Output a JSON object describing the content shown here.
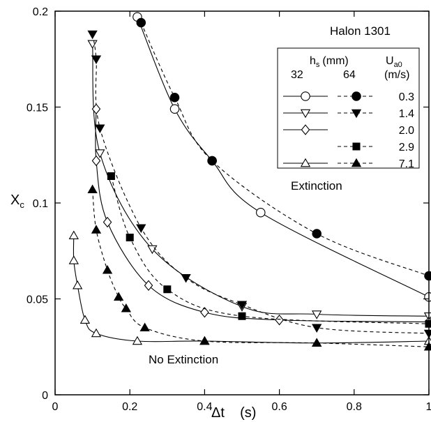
{
  "chart_data": {
    "type": "scatter",
    "title": "",
    "xlabel": "Δt    (s)",
    "ylabel": "X_c",
    "xlim": [
      0,
      1
    ],
    "ylim": [
      0,
      0.2
    ],
    "xticks": [
      0,
      0.2,
      0.4,
      0.6,
      0.8,
      1
    ],
    "xtick_labels": [
      "0",
      "0.2",
      "0.4",
      "0.6",
      "0.8",
      "1"
    ],
    "yticks": [
      0,
      0.05,
      0.1,
      0.15,
      0.2
    ],
    "ytick_labels": [
      "0",
      "0.05",
      "0.1",
      "0.15",
      "0.2"
    ],
    "grid": false,
    "annotations": [
      "Halon 1301",
      "Extinction",
      "No Extinction"
    ],
    "legend": {
      "placement": "top-right",
      "header_hs": "h",
      "header_hs_sub": "s",
      "header_hs_unit": "(mm)",
      "header_u": "U",
      "header_u_sub": "a0",
      "header_u_unit": "(m/s)",
      "col_32": "32",
      "col_64": "64",
      "rows": [
        {
          "u": "0.3",
          "marker32": "circle",
          "marker64": "circle"
        },
        {
          "u": "1.4",
          "marker32": "triangle-down",
          "marker64": "triangle-down"
        },
        {
          "u": "2.0",
          "marker32": "diamond",
          "marker64": null
        },
        {
          "u": "2.9",
          "marker32": null,
          "marker64": "square"
        },
        {
          "u": "7.1",
          "marker32": "triangle-up",
          "marker64": "triangle-up"
        }
      ]
    },
    "series": [
      {
        "h_s": "32",
        "u_a0": "0.3",
        "marker": "circle",
        "filled": false,
        "line": "solid",
        "points": [
          [
            0.22,
            0.197
          ],
          [
            0.32,
            0.149
          ],
          [
            0.42,
            0.122
          ],
          [
            0.55,
            0.095
          ],
          [
            1.0,
            0.051
          ]
        ]
      },
      {
        "h_s": "64",
        "u_a0": "0.3",
        "marker": "circle",
        "filled": true,
        "line": "dashed",
        "points": [
          [
            0.23,
            0.194
          ],
          [
            0.32,
            0.155
          ],
          [
            0.42,
            0.122
          ],
          [
            0.7,
            0.084
          ],
          [
            1.0,
            0.062
          ]
        ]
      },
      {
        "h_s": "32",
        "u_a0": "1.4",
        "marker": "triangle-down",
        "filled": false,
        "line": "solid",
        "points": [
          [
            0.1,
            0.183
          ],
          [
            0.12,
            0.126
          ],
          [
            0.26,
            0.076
          ],
          [
            0.5,
            0.046
          ],
          [
            0.7,
            0.042
          ],
          [
            1.0,
            0.041
          ]
        ]
      },
      {
        "h_s": "64",
        "u_a0": "1.4",
        "marker": "triangle-down",
        "filled": true,
        "line": "dashed",
        "points": [
          [
            0.1,
            0.188
          ],
          [
            0.11,
            0.175
          ],
          [
            0.12,
            0.139
          ],
          [
            0.23,
            0.087
          ],
          [
            0.35,
            0.061
          ],
          [
            0.5,
            0.047
          ],
          [
            0.7,
            0.035
          ],
          [
            1.0,
            0.032
          ]
        ]
      },
      {
        "h_s": "32",
        "u_a0": "2.0",
        "marker": "diamond",
        "filled": false,
        "line": "solid",
        "points": [
          [
            0.11,
            0.149
          ],
          [
            0.11,
            0.122
          ],
          [
            0.14,
            0.09
          ],
          [
            0.25,
            0.057
          ],
          [
            0.4,
            0.043
          ],
          [
            0.6,
            0.039
          ],
          [
            1.0,
            0.038
          ]
        ]
      },
      {
        "h_s": "64",
        "u_a0": "2.9",
        "marker": "square",
        "filled": true,
        "line": "dashed",
        "points": [
          [
            0.15,
            0.114
          ],
          [
            0.2,
            0.082
          ],
          [
            0.3,
            0.055
          ],
          [
            0.5,
            0.041
          ],
          [
            1.0,
            0.037
          ]
        ]
      },
      {
        "h_s": "32",
        "u_a0": "7.1",
        "marker": "triangle-up",
        "filled": false,
        "line": "solid",
        "points": [
          [
            0.05,
            0.083
          ],
          [
            0.05,
            0.07
          ],
          [
            0.06,
            0.057
          ],
          [
            0.08,
            0.039
          ],
          [
            0.11,
            0.032
          ],
          [
            0.22,
            0.028
          ],
          [
            0.4,
            0.028
          ],
          [
            0.7,
            0.027
          ],
          [
            1.0,
            0.028
          ]
        ]
      },
      {
        "h_s": "64",
        "u_a0": "7.1",
        "marker": "triangle-up",
        "filled": true,
        "line": "dashed",
        "points": [
          [
            0.1,
            0.107
          ],
          [
            0.11,
            0.086
          ],
          [
            0.14,
            0.065
          ],
          [
            0.17,
            0.051
          ],
          [
            0.19,
            0.045
          ],
          [
            0.24,
            0.035
          ],
          [
            0.4,
            0.028
          ],
          [
            0.7,
            0.027
          ],
          [
            1.0,
            0.025
          ]
        ]
      }
    ]
  }
}
